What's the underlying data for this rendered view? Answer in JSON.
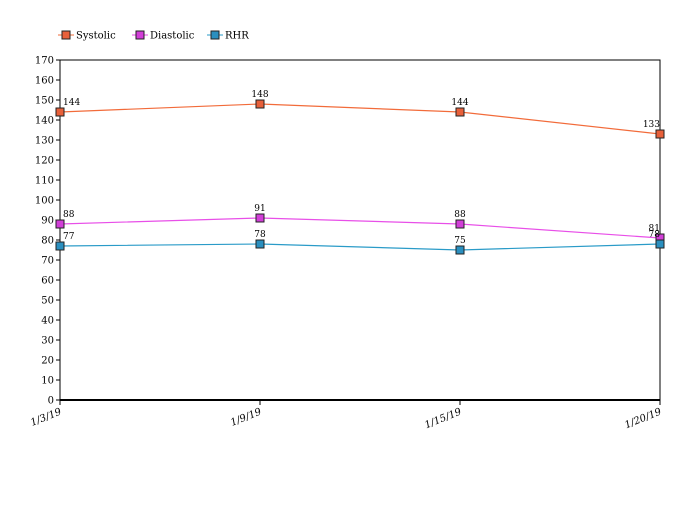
{
  "chart_data": {
    "type": "line",
    "title": "",
    "xlabel": "",
    "ylabel": "",
    "ylim": [
      0,
      170
    ],
    "y_ticks": [
      0,
      10,
      20,
      30,
      40,
      50,
      60,
      70,
      80,
      90,
      100,
      110,
      120,
      130,
      140,
      150,
      160,
      170
    ],
    "grid": false,
    "legend_position": "top-left",
    "x": [
      "1/3/19",
      "1/9/19",
      "1/15/19",
      "1/20/19"
    ],
    "series": [
      {
        "name": "Systolic",
        "values": [
          144,
          148,
          144,
          133
        ],
        "color": "#f26b3a",
        "marker_color": "#e8603a"
      },
      {
        "name": "Diastolic",
        "values": [
          88,
          91,
          88,
          81
        ],
        "color": "#e84fe8",
        "marker_color": "#d23ed8"
      },
      {
        "name": "RHR",
        "values": [
          77,
          78,
          75,
          78
        ],
        "color": "#2a9bc8",
        "marker_color": "#2a8fbf"
      }
    ],
    "data_labels": [
      [
        "144",
        "148",
        "144",
        "133"
      ],
      [
        "88",
        "91",
        "88",
        "81"
      ],
      [
        "77",
        "78",
        "75",
        "78"
      ]
    ]
  }
}
